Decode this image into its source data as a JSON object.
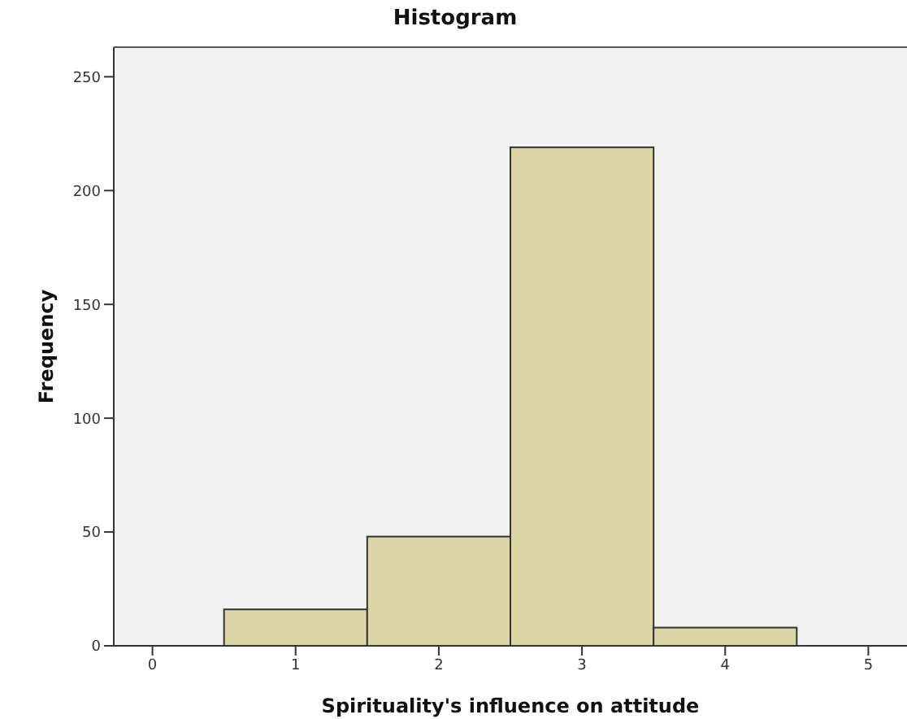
{
  "chart_data": {
    "type": "histogram",
    "title": "Histogram",
    "xlabel": "Spirituality's influence on attitude",
    "ylabel": "Frequency",
    "bins": [
      0.5,
      1.5,
      2.5,
      3.5,
      4.5
    ],
    "values": [
      16,
      48,
      219,
      8
    ],
    "color": "#dbd5a6",
    "xlim": [
      -0.27,
      5.27
    ],
    "xticks": [
      0,
      1,
      2,
      3,
      4,
      5
    ],
    "ylim": [
      0,
      263
    ],
    "yticks": [
      0,
      50,
      100,
      150,
      200,
      250
    ],
    "grid": false,
    "legend": false
  }
}
